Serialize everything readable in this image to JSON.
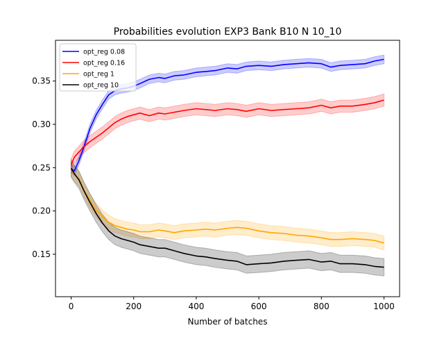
{
  "chart_data": {
    "type": "line",
    "title": "Probabilities evolution EXP3 Bank B10 N 10_10",
    "xlabel": "Number of batches",
    "ylabel": "",
    "xlim": [
      -50,
      1050
    ],
    "ylim": [
      0.101,
      0.397
    ],
    "xticks": [
      0,
      200,
      400,
      600,
      800,
      1000
    ],
    "yticks": [
      0.15,
      0.2,
      0.25,
      0.3,
      0.35
    ],
    "xtick_labels": [
      "0",
      "200",
      "400",
      "600",
      "800",
      "1000"
    ],
    "ytick_labels": [
      "0.15",
      "0.20",
      "0.25",
      "0.30",
      "0.35"
    ],
    "grid": false,
    "legend_position": "top-left",
    "series": [
      {
        "name": "opt_reg 0.08",
        "color": "#0000ff",
        "band_width": 0.005,
        "x": [
          0,
          10,
          25,
          40,
          60,
          80,
          100,
          120,
          140,
          160,
          180,
          200,
          220,
          250,
          280,
          300,
          330,
          360,
          400,
          430,
          460,
          500,
          530,
          560,
          600,
          640,
          680,
          720,
          760,
          800,
          830,
          860,
          900,
          940,
          970,
          1000
        ],
        "y": [
          0.249,
          0.246,
          0.258,
          0.273,
          0.295,
          0.311,
          0.323,
          0.334,
          0.339,
          0.341,
          0.342,
          0.344,
          0.347,
          0.352,
          0.354,
          0.353,
          0.356,
          0.357,
          0.36,
          0.361,
          0.362,
          0.365,
          0.364,
          0.367,
          0.368,
          0.367,
          0.369,
          0.37,
          0.371,
          0.37,
          0.366,
          0.368,
          0.369,
          0.37,
          0.373,
          0.375
        ]
      },
      {
        "name": "opt_reg 0.16",
        "color": "#ff0000",
        "band_width": 0.007,
        "x": [
          0,
          10,
          25,
          40,
          60,
          80,
          100,
          120,
          140,
          160,
          180,
          200,
          220,
          250,
          280,
          300,
          330,
          360,
          400,
          430,
          460,
          500,
          530,
          560,
          600,
          640,
          680,
          720,
          760,
          800,
          830,
          860,
          900,
          940,
          970,
          1000
        ],
        "y": [
          0.253,
          0.262,
          0.268,
          0.274,
          0.28,
          0.285,
          0.29,
          0.296,
          0.302,
          0.306,
          0.309,
          0.311,
          0.313,
          0.31,
          0.313,
          0.312,
          0.314,
          0.316,
          0.318,
          0.317,
          0.316,
          0.318,
          0.317,
          0.315,
          0.318,
          0.316,
          0.317,
          0.318,
          0.319,
          0.322,
          0.319,
          0.321,
          0.321,
          0.323,
          0.325,
          0.328
        ]
      },
      {
        "name": "opt_reg 1",
        "color": "#ffa500",
        "band_width": 0.008,
        "x": [
          0,
          10,
          25,
          40,
          60,
          80,
          100,
          120,
          140,
          160,
          180,
          200,
          220,
          250,
          280,
          300,
          330,
          360,
          400,
          430,
          460,
          500,
          530,
          560,
          600,
          640,
          680,
          720,
          760,
          800,
          830,
          860,
          900,
          940,
          970,
          1000
        ],
        "y": [
          0.248,
          0.242,
          0.237,
          0.225,
          0.212,
          0.201,
          0.193,
          0.187,
          0.183,
          0.181,
          0.179,
          0.178,
          0.176,
          0.176,
          0.178,
          0.177,
          0.175,
          0.177,
          0.178,
          0.179,
          0.178,
          0.18,
          0.181,
          0.18,
          0.177,
          0.175,
          0.174,
          0.172,
          0.171,
          0.169,
          0.167,
          0.167,
          0.168,
          0.167,
          0.166,
          0.163
        ]
      },
      {
        "name": "opt_reg 10",
        "color": "#000000",
        "band_width": 0.01,
        "x": [
          0,
          10,
          25,
          40,
          60,
          80,
          100,
          120,
          140,
          160,
          180,
          200,
          220,
          250,
          280,
          300,
          330,
          360,
          400,
          430,
          460,
          500,
          530,
          560,
          600,
          640,
          680,
          720,
          760,
          800,
          830,
          860,
          900,
          940,
          970,
          1000
        ],
        "y": [
          0.249,
          0.243,
          0.236,
          0.224,
          0.21,
          0.197,
          0.186,
          0.177,
          0.171,
          0.168,
          0.166,
          0.164,
          0.161,
          0.159,
          0.157,
          0.157,
          0.154,
          0.151,
          0.148,
          0.147,
          0.145,
          0.143,
          0.142,
          0.138,
          0.139,
          0.14,
          0.142,
          0.143,
          0.144,
          0.141,
          0.142,
          0.139,
          0.139,
          0.138,
          0.136,
          0.135
        ]
      }
    ]
  }
}
